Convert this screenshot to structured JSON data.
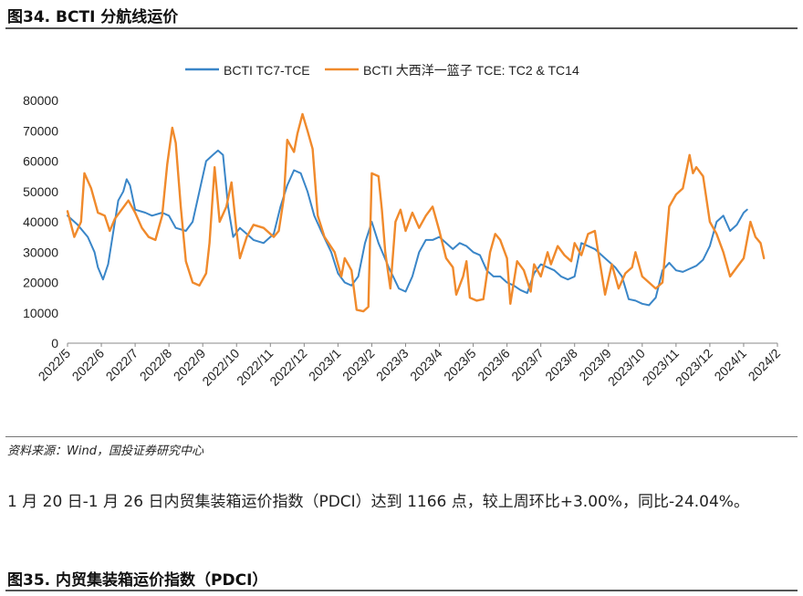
{
  "figure34": {
    "title": "图34. BCTI 分航线运价"
  },
  "source": "资料来源：Wind，国投证券研究中心",
  "paragraph": "1 月 20 日-1 月 26 日内贸集装箱运价指数（PDCI）达到 1166 点，较上周环比+3.00%，同比-24.04%。",
  "figure35": {
    "title": "图35. 内贸集装箱运价指数（PDCI）"
  },
  "colors": {
    "blue": "#3a86c8",
    "orange": "#f08a2c"
  },
  "chart_data": {
    "type": "line",
    "title": "",
    "xlabel": "",
    "ylabel": "",
    "ylim": [
      0,
      80000
    ],
    "yticks": [
      0,
      10000,
      20000,
      30000,
      40000,
      50000,
      60000,
      70000,
      80000
    ],
    "x_ticks": [
      "2022/5",
      "2022/6",
      "2022/7",
      "2022/8",
      "2022/9",
      "2022/10",
      "2022/11",
      "2022/12",
      "2023/1",
      "2023/2",
      "2023/3",
      "2023/4",
      "2023/5",
      "2023/6",
      "2023/7",
      "2023/8",
      "2023/9",
      "2023/10",
      "2023/11",
      "2023/12",
      "2024/1",
      "2024/2"
    ],
    "legend_position": "top",
    "series": [
      {
        "name": "BCTI TC7-TCE",
        "color": "#3a86c8",
        "points": [
          [
            0,
            42000
          ],
          [
            0.3,
            39000
          ],
          [
            0.6,
            35000
          ],
          [
            0.8,
            30000
          ],
          [
            0.9,
            25000
          ],
          [
            1.05,
            21000
          ],
          [
            1.2,
            26000
          ],
          [
            1.4,
            40000
          ],
          [
            1.5,
            47000
          ],
          [
            1.65,
            50000
          ],
          [
            1.75,
            54000
          ],
          [
            1.85,
            52000
          ],
          [
            2.0,
            44000
          ],
          [
            2.3,
            43000
          ],
          [
            2.5,
            42000
          ],
          [
            2.8,
            43000
          ],
          [
            3.0,
            42000
          ],
          [
            3.2,
            38000
          ],
          [
            3.5,
            37000
          ],
          [
            3.7,
            40000
          ],
          [
            3.9,
            50000
          ],
          [
            4.1,
            60000
          ],
          [
            4.3,
            62000
          ],
          [
            4.45,
            63500
          ],
          [
            4.6,
            62000
          ],
          [
            4.75,
            45000
          ],
          [
            4.9,
            35000
          ],
          [
            5.1,
            38000
          ],
          [
            5.3,
            36000
          ],
          [
            5.5,
            34000
          ],
          [
            5.8,
            33000
          ],
          [
            6.1,
            36000
          ],
          [
            6.3,
            45000
          ],
          [
            6.5,
            52000
          ],
          [
            6.7,
            57000
          ],
          [
            6.9,
            56000
          ],
          [
            7.1,
            50000
          ],
          [
            7.3,
            42000
          ],
          [
            7.5,
            37000
          ],
          [
            7.8,
            30000
          ],
          [
            8.0,
            23000
          ],
          [
            8.2,
            20000
          ],
          [
            8.4,
            19000
          ],
          [
            8.6,
            22000
          ],
          [
            8.8,
            33000
          ],
          [
            9.0,
            40000
          ],
          [
            9.2,
            33000
          ],
          [
            9.5,
            25000
          ],
          [
            9.8,
            18000
          ],
          [
            10.0,
            17000
          ],
          [
            10.2,
            22000
          ],
          [
            10.4,
            30000
          ],
          [
            10.6,
            34000
          ],
          [
            10.8,
            34000
          ],
          [
            11.0,
            35000
          ],
          [
            11.2,
            33000
          ],
          [
            11.4,
            31000
          ],
          [
            11.6,
            33000
          ],
          [
            11.8,
            32000
          ],
          [
            12.0,
            30000
          ],
          [
            12.2,
            29000
          ],
          [
            12.4,
            24000
          ],
          [
            12.6,
            22000
          ],
          [
            12.8,
            22000
          ],
          [
            13.0,
            20000
          ],
          [
            13.2,
            19000
          ],
          [
            13.4,
            17500
          ],
          [
            13.6,
            16500
          ],
          [
            13.8,
            23000
          ],
          [
            14.0,
            26000
          ],
          [
            14.2,
            25000
          ],
          [
            14.4,
            24000
          ],
          [
            14.6,
            22000
          ],
          [
            14.8,
            21000
          ],
          [
            15.0,
            22000
          ],
          [
            15.2,
            33000
          ],
          [
            15.4,
            32000
          ],
          [
            15.6,
            31000
          ],
          [
            15.8,
            29000
          ],
          [
            16.0,
            27000
          ],
          [
            16.2,
            25000
          ],
          [
            16.4,
            22000
          ],
          [
            16.6,
            14500
          ],
          [
            16.8,
            14000
          ],
          [
            17.0,
            13000
          ],
          [
            17.2,
            12500
          ],
          [
            17.4,
            15000
          ],
          [
            17.6,
            24000
          ],
          [
            17.8,
            26500
          ],
          [
            18.0,
            24000
          ],
          [
            18.2,
            23500
          ],
          [
            18.4,
            24500
          ],
          [
            18.6,
            25500
          ],
          [
            18.8,
            27500
          ],
          [
            19.0,
            32000
          ],
          [
            19.2,
            40000
          ],
          [
            19.4,
            42000
          ],
          [
            19.6,
            37000
          ],
          [
            19.8,
            39000
          ],
          [
            20.0,
            43000
          ],
          [
            20.1,
            44000
          ]
        ]
      },
      {
        "name": "BCTI 大西洋一篮子 TCE: TC2 & TC14",
        "color": "#f08a2c",
        "points": [
          [
            0,
            43500
          ],
          [
            0.2,
            35000
          ],
          [
            0.4,
            40000
          ],
          [
            0.5,
            56000
          ],
          [
            0.7,
            51000
          ],
          [
            0.9,
            43000
          ],
          [
            1.1,
            42000
          ],
          [
            1.25,
            37000
          ],
          [
            1.4,
            41000
          ],
          [
            1.6,
            44000
          ],
          [
            1.8,
            47000
          ],
          [
            2.0,
            43000
          ],
          [
            2.2,
            38000
          ],
          [
            2.4,
            35000
          ],
          [
            2.6,
            34000
          ],
          [
            2.8,
            42000
          ],
          [
            2.95,
            59000
          ],
          [
            3.1,
            71000
          ],
          [
            3.2,
            66000
          ],
          [
            3.35,
            45000
          ],
          [
            3.5,
            27000
          ],
          [
            3.7,
            20000
          ],
          [
            3.9,
            19000
          ],
          [
            4.1,
            23000
          ],
          [
            4.2,
            33000
          ],
          [
            4.35,
            58000
          ],
          [
            4.5,
            40000
          ],
          [
            4.7,
            45000
          ],
          [
            4.85,
            53000
          ],
          [
            5.0,
            37000
          ],
          [
            5.1,
            28000
          ],
          [
            5.3,
            35000
          ],
          [
            5.5,
            39000
          ],
          [
            5.8,
            38000
          ],
          [
            6.0,
            36000
          ],
          [
            6.1,
            35000
          ],
          [
            6.25,
            37000
          ],
          [
            6.4,
            48000
          ],
          [
            6.5,
            67000
          ],
          [
            6.7,
            63000
          ],
          [
            6.8,
            69000
          ],
          [
            6.95,
            75500
          ],
          [
            7.1,
            70000
          ],
          [
            7.25,
            64000
          ],
          [
            7.4,
            42000
          ],
          [
            7.6,
            35000
          ],
          [
            7.9,
            30000
          ],
          [
            8.1,
            22000
          ],
          [
            8.2,
            28000
          ],
          [
            8.4,
            24000
          ],
          [
            8.55,
            11000
          ],
          [
            8.75,
            10500
          ],
          [
            8.9,
            12000
          ],
          [
            9.0,
            56000
          ],
          [
            9.2,
            55000
          ],
          [
            9.3,
            44000
          ],
          [
            9.4,
            30000
          ],
          [
            9.55,
            18000
          ],
          [
            9.7,
            40000
          ],
          [
            9.85,
            44000
          ],
          [
            10.0,
            37000
          ],
          [
            10.2,
            43000
          ],
          [
            10.4,
            38000
          ],
          [
            10.6,
            42000
          ],
          [
            10.8,
            45000
          ],
          [
            11.0,
            37000
          ],
          [
            11.2,
            28000
          ],
          [
            11.4,
            25000
          ],
          [
            11.5,
            16000
          ],
          [
            11.7,
            22000
          ],
          [
            11.8,
            27000
          ],
          [
            11.9,
            15000
          ],
          [
            12.1,
            14000
          ],
          [
            12.3,
            14500
          ],
          [
            12.5,
            30000
          ],
          [
            12.65,
            36000
          ],
          [
            12.8,
            34000
          ],
          [
            13.0,
            28000
          ],
          [
            13.1,
            13000
          ],
          [
            13.3,
            27000
          ],
          [
            13.5,
            24000
          ],
          [
            13.7,
            17000
          ],
          [
            13.8,
            26000
          ],
          [
            14.0,
            22000
          ],
          [
            14.2,
            30000
          ],
          [
            14.3,
            26000
          ],
          [
            14.5,
            32000
          ],
          [
            14.7,
            29000
          ],
          [
            14.9,
            27000
          ],
          [
            15.0,
            33000
          ],
          [
            15.2,
            29000
          ],
          [
            15.4,
            36000
          ],
          [
            15.6,
            37000
          ],
          [
            15.7,
            30000
          ],
          [
            15.9,
            16000
          ],
          [
            16.1,
            26000
          ],
          [
            16.3,
            18000
          ],
          [
            16.5,
            23000
          ],
          [
            16.7,
            25000
          ],
          [
            16.8,
            30000
          ],
          [
            17.0,
            22000
          ],
          [
            17.2,
            20000
          ],
          [
            17.4,
            18000
          ],
          [
            17.6,
            20000
          ],
          [
            17.8,
            45000
          ],
          [
            18.0,
            49000
          ],
          [
            18.2,
            51000
          ],
          [
            18.4,
            62000
          ],
          [
            18.5,
            56000
          ],
          [
            18.6,
            58000
          ],
          [
            18.8,
            55000
          ],
          [
            19.0,
            40000
          ],
          [
            19.2,
            36000
          ],
          [
            19.4,
            30000
          ],
          [
            19.6,
            22000
          ],
          [
            19.8,
            25000
          ],
          [
            20.0,
            28000
          ],
          [
            20.2,
            40000
          ],
          [
            20.35,
            35000
          ],
          [
            20.5,
            33000
          ],
          [
            20.6,
            28000
          ]
        ]
      }
    ]
  }
}
